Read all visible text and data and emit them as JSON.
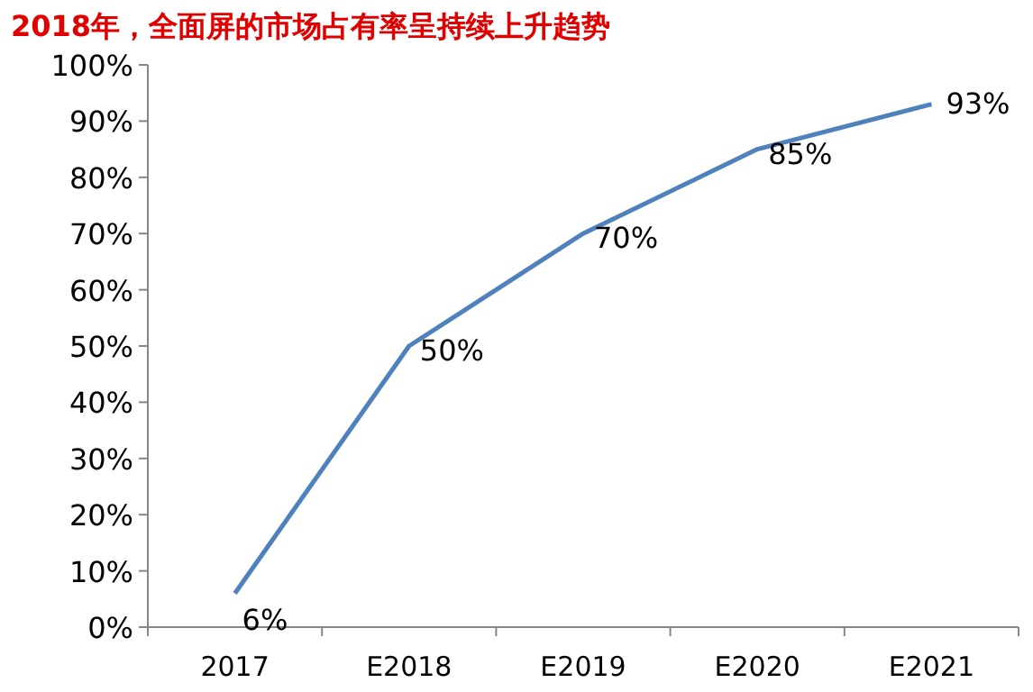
{
  "chart_data": {
    "type": "line",
    "title": "2018年，全面屏的市场占有率呈持续上升趋势",
    "categories": [
      "2017",
      "E2018",
      "E2019",
      "E2020",
      "E2021"
    ],
    "series": [
      {
        "color": "#4f81bd",
        "values": [
          6,
          50,
          70,
          85,
          93
        ],
        "value_labels": [
          "6%",
          "50%",
          "70%",
          "85%",
          "93%"
        ]
      }
    ],
    "ylim": [
      0,
      100
    ],
    "yticks": [
      {
        "value": 0,
        "label": "0%"
      },
      {
        "value": 10,
        "label": "10%"
      },
      {
        "value": 20,
        "label": "20%"
      },
      {
        "value": 30,
        "label": "30%"
      },
      {
        "value": 40,
        "label": "40%"
      },
      {
        "value": 50,
        "label": "50%"
      },
      {
        "value": 60,
        "label": "60%"
      },
      {
        "value": 70,
        "label": "70%"
      },
      {
        "value": 80,
        "label": "80%"
      },
      {
        "value": 90,
        "label": "90%"
      },
      {
        "value": 100,
        "label": "100%"
      }
    ],
    "grid": false,
    "marker": "none",
    "line_style": "solid"
  }
}
